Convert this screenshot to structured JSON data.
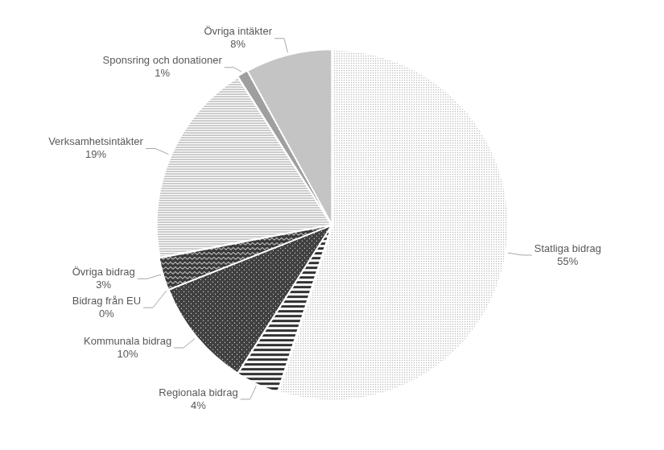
{
  "chart_data": {
    "type": "pie",
    "categories": [
      "Statliga bidrag",
      "Regionala bidrag",
      "Kommunala bidrag",
      "Bidrag från EU",
      "Övriga bidrag",
      "Verksamhetsintäkter",
      "Sponsring och donationer",
      "Övriga intäkter"
    ],
    "values": [
      55,
      4,
      10,
      0,
      3,
      19,
      1,
      8
    ],
    "value_labels": [
      "55%",
      "4%",
      "10%",
      "0%",
      "3%",
      "19%",
      "1%",
      "8%"
    ],
    "colors": [
      "#8c8c8c",
      "#303030",
      "#404040",
      "#505050",
      "#3a3a3a",
      "#9a9a9a",
      "#404040",
      "#8a8a8a"
    ],
    "data_labels": true
  }
}
